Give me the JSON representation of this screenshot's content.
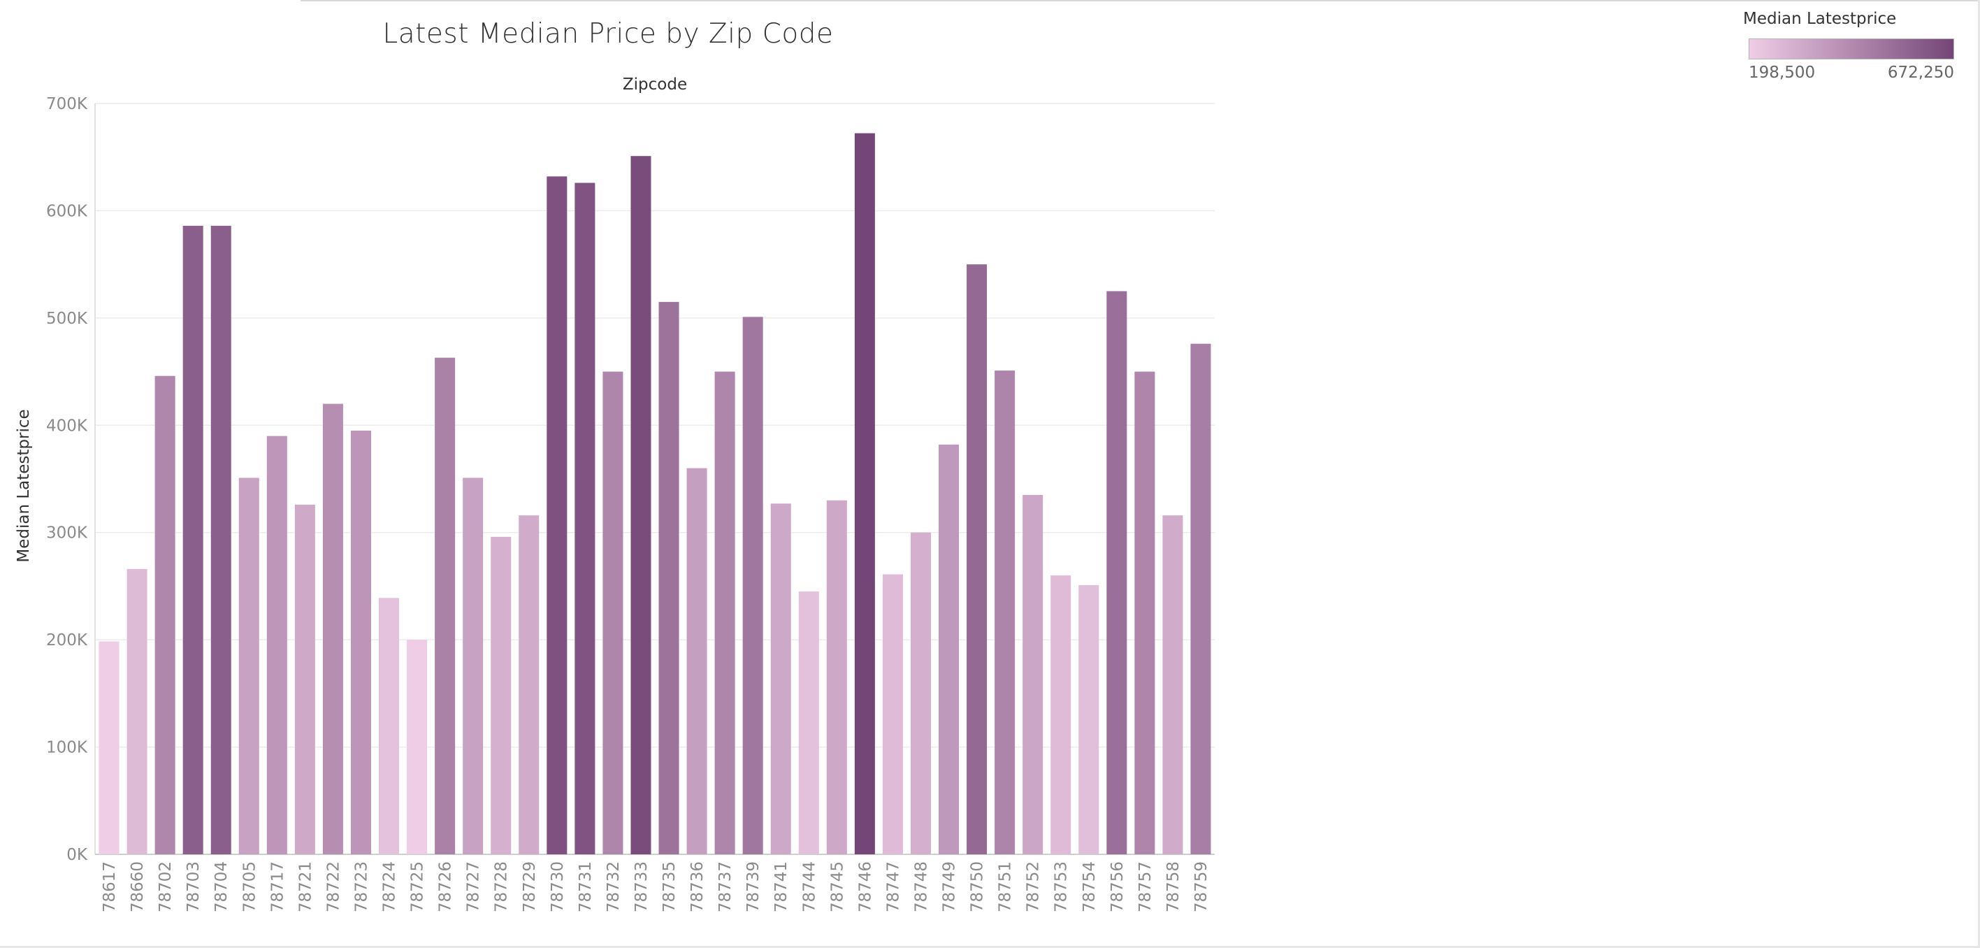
{
  "title": "Latest Median Price by Zip Code",
  "legend": {
    "title": "Median Latestprice",
    "min_label": "198,500",
    "max_label": "672,250",
    "color_low": "#efcde6",
    "color_high": "#744677"
  },
  "chart_data": {
    "type": "bar",
    "title": "Latest Median Price by Zip Code",
    "column_header": "Zipcode",
    "xlabel": "",
    "ylabel": "Median Latestprice",
    "ylim": [
      0,
      700000
    ],
    "yticks": [
      0,
      100000,
      200000,
      300000,
      400000,
      500000,
      600000,
      700000
    ],
    "ytick_labels": [
      "0K",
      "100K",
      "200K",
      "300K",
      "400K",
      "500K",
      "600K",
      "700K"
    ],
    "grid": true,
    "color_encoding": "sequential by value",
    "categories": [
      "78617",
      "78660",
      "78702",
      "78703",
      "78704",
      "78705",
      "78717",
      "78721",
      "78722",
      "78723",
      "78724",
      "78725",
      "78726",
      "78727",
      "78728",
      "78729",
      "78730",
      "78731",
      "78732",
      "78733",
      "78735",
      "78736",
      "78737",
      "78739",
      "78741",
      "78744",
      "78745",
      "78746",
      "78747",
      "78748",
      "78749",
      "78750",
      "78751",
      "78752",
      "78753",
      "78754",
      "78756",
      "78757",
      "78758",
      "78759"
    ],
    "values": [
      198500,
      266000,
      446000,
      586000,
      586000,
      351000,
      390000,
      326000,
      420000,
      395000,
      239000,
      200000,
      463000,
      351000,
      296000,
      316000,
      632000,
      626000,
      450000,
      651000,
      515000,
      360000,
      450000,
      501000,
      327000,
      245000,
      330000,
      672250,
      261000,
      300000,
      382000,
      550000,
      451000,
      335000,
      260000,
      251000,
      525000,
      450000,
      316000,
      476000
    ]
  }
}
